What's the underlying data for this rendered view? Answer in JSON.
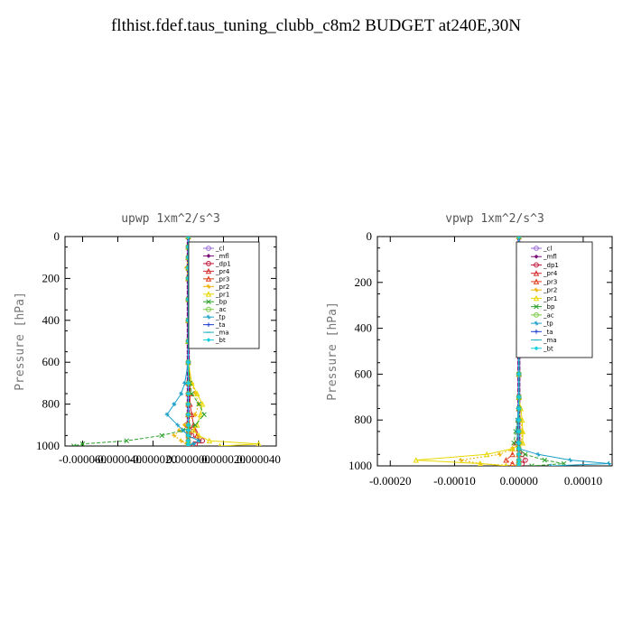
{
  "title": "flthist.fdef.taus_tuning_clubb_c8m2  BUDGET at240E,30N",
  "chart_data": [
    {
      "type": "line",
      "title": "upwp   1xm^2/s^3",
      "xlabel": "",
      "ylabel": "Pressure [hPa]",
      "xlim": [
        -7e-05,
        5e-05
      ],
      "ylim": [
        1000,
        0
      ],
      "xticks": [
        -6e-05,
        -4e-05,
        -2e-05,
        0.0,
        2e-05,
        4e-05
      ],
      "xtick_labels": [
        "-0.000060",
        "-0.000040",
        "-0.000020",
        "0.000000",
        "0.000020",
        "0.000040"
      ],
      "yticks": [
        0,
        200,
        400,
        600,
        800,
        1000
      ],
      "ytick_labels": [
        "0",
        "200",
        "400",
        "600",
        "800",
        "1000"
      ],
      "pressure": [
        0,
        50,
        100,
        150,
        200,
        300,
        400,
        500,
        600,
        700,
        750,
        800,
        850,
        900,
        925,
        950,
        975,
        990,
        1000
      ],
      "legend_position": "top-right",
      "series": [
        {
          "name": "_cl",
          "color": "#9a6bd6",
          "values": [
            0,
            0,
            0,
            0,
            0,
            0,
            0,
            0,
            0,
            0,
            0,
            0,
            0,
            0,
            0,
            0,
            0,
            0,
            0
          ]
        },
        {
          "name": "_mfl",
          "color": "#7a0f7a",
          "values": [
            0,
            0,
            0,
            0,
            0,
            0,
            0,
            0,
            0,
            0,
            0,
            0,
            0,
            0,
            0,
            0,
            0,
            0,
            0
          ]
        },
        {
          "name": "_dp1",
          "color": "#c0163b",
          "values": [
            0,
            0,
            0,
            0,
            0,
            0,
            0,
            0,
            0,
            0,
            0,
            0,
            0,
            -1e-06,
            1e-06,
            2e-06,
            8e-06,
            4e-06,
            0
          ]
        },
        {
          "name": "_pr4",
          "color": "#d42a2a",
          "values": [
            0,
            0,
            0,
            0,
            0,
            0,
            0,
            0,
            0,
            1e-06,
            1e-06,
            1e-06,
            2e-06,
            3e-06,
            4e-06,
            5e-06,
            6e-06,
            3e-06,
            1e-06
          ]
        },
        {
          "name": "_pr3",
          "color": "#e03c1a",
          "values": [
            0,
            0,
            0,
            0,
            0,
            0,
            0,
            0,
            0,
            0,
            0,
            0,
            0,
            0,
            0,
            0,
            0,
            0,
            0
          ]
        },
        {
          "name": "_pr2",
          "color": "#f0b000",
          "values": [
            0,
            0,
            0,
            -1e-06,
            0,
            0,
            0,
            0,
            0,
            2e-06,
            4e-06,
            6e-06,
            4e-06,
            -2e-06,
            -5e-06,
            -8e-06,
            -4e-06,
            -1e-06,
            0
          ]
        },
        {
          "name": "_pr1",
          "color": "#e8d800",
          "values": [
            0,
            0,
            0,
            0,
            0,
            0,
            0,
            0,
            0,
            2e-06,
            5e-06,
            8e-06,
            7e-06,
            5e-06,
            3e-06,
            6e-06,
            1.2e-05,
            4e-05,
            1.8e-05
          ]
        },
        {
          "name": "_bp",
          "color": "#2aa02a",
          "values": [
            0,
            0,
            0,
            0,
            0,
            0,
            0,
            0,
            0,
            1e-06,
            2e-06,
            6e-06,
            9e-06,
            4e-06,
            -3e-06,
            -1.5e-05,
            -3.5e-05,
            -6e-05,
            -6.5e-05
          ]
        },
        {
          "name": "_ac",
          "color": "#7ac943",
          "values": [
            0,
            0,
            0,
            0,
            0,
            0,
            0,
            0,
            0,
            0,
            0,
            0,
            0,
            0,
            0,
            0,
            0,
            0,
            0
          ]
        },
        {
          "name": "_tp",
          "color": "#1aa0c8",
          "values": [
            0,
            0,
            0,
            0,
            0,
            0,
            0,
            0,
            0,
            -2e-06,
            -4e-06,
            -8e-06,
            -1.2e-05,
            -6e-06,
            -3e-06,
            0,
            6e-06,
            3e-06,
            0
          ]
        },
        {
          "name": "_ta",
          "color": "#1e3fd0",
          "values": [
            0,
            1e-06,
            2e-06,
            1e-06,
            0,
            0,
            0,
            0,
            0,
            0,
            0,
            0,
            0,
            0,
            0,
            0,
            0,
            0,
            0
          ]
        },
        {
          "name": "_ma",
          "color": "#1fb0c0",
          "values": [
            0,
            0,
            0,
            0,
            0,
            0,
            0,
            0,
            0,
            0,
            0,
            0,
            0,
            0,
            0,
            0,
            0,
            0,
            0
          ]
        },
        {
          "name": "_bt",
          "color": "#18d0e0",
          "values": [
            0,
            0,
            0,
            0,
            0,
            0,
            0,
            0,
            0,
            0,
            0,
            0,
            0,
            0,
            0,
            0,
            0,
            0,
            0
          ]
        }
      ]
    },
    {
      "type": "line",
      "title": "vpwp   1xm^2/s^3",
      "xlabel": "",
      "ylabel": "Pressure [hPa]",
      "xlim": [
        -0.00022,
        0.000145
      ],
      "ylim": [
        1000,
        0
      ],
      "xticks": [
        -0.0002,
        -0.0001,
        0.0,
        0.0001
      ],
      "xtick_labels": [
        "-0.00020",
        "-0.00010",
        "0.00000",
        "0.00010"
      ],
      "yticks": [
        0,
        200,
        400,
        600,
        800,
        1000
      ],
      "ytick_labels": [
        "0",
        "200",
        "400",
        "600",
        "800",
        "1000"
      ],
      "pressure": [
        0,
        50,
        100,
        150,
        200,
        300,
        400,
        500,
        600,
        700,
        750,
        800,
        850,
        900,
        925,
        950,
        975,
        990,
        1000
      ],
      "legend_position": "top-right",
      "series": [
        {
          "name": "_cl",
          "color": "#9a6bd6",
          "values": [
            0,
            0,
            0,
            0,
            0,
            0,
            0,
            0,
            0,
            0,
            0,
            0,
            0,
            0,
            0,
            0,
            0,
            0,
            0
          ]
        },
        {
          "name": "_mfl",
          "color": "#7a0f7a",
          "values": [
            0,
            0,
            0,
            0,
            0,
            0,
            0,
            0,
            0,
            0,
            0,
            0,
            0,
            0,
            0,
            0,
            0,
            0,
            0
          ]
        },
        {
          "name": "_dp1",
          "color": "#c0163b",
          "values": [
            0,
            0,
            0,
            0,
            0,
            0,
            0,
            0,
            0,
            0,
            0,
            0,
            0,
            0,
            0,
            5e-06,
            1e-05,
            5e-06,
            0
          ]
        },
        {
          "name": "_pr4",
          "color": "#d42a2a",
          "values": [
            0,
            0,
            0,
            0,
            0,
            0,
            0,
            0,
            0,
            0,
            0,
            0,
            0,
            0,
            0,
            0,
            0,
            0,
            0
          ]
        },
        {
          "name": "_pr3",
          "color": "#e03c1a",
          "values": [
            0,
            0,
            0,
            0,
            0,
            0,
            0,
            0,
            0,
            0,
            0,
            0,
            0,
            -5e-06,
            -1e-05,
            -1e-05,
            -2e-05,
            -1e-05,
            0
          ]
        },
        {
          "name": "_pr2",
          "color": "#f0b000",
          "values": [
            0,
            0,
            0,
            0,
            0,
            0,
            0,
            0,
            0,
            0,
            0,
            3e-06,
            5e-06,
            4e-06,
            -1e-05,
            -3e-05,
            -9e-05,
            -6e-05,
            0
          ]
        },
        {
          "name": "_pr1",
          "color": "#e8d800",
          "values": [
            0,
            0,
            0,
            0,
            0,
            0,
            0,
            0,
            0,
            0,
            3e-06,
            5e-06,
            6e-06,
            6e-06,
            -1e-05,
            -5e-05,
            -0.00016,
            -6e-05,
            -2e-05
          ]
        },
        {
          "name": "_bp",
          "color": "#2aa02a",
          "values": [
            0,
            0,
            0,
            0,
            0,
            0,
            0,
            0,
            0,
            0,
            0,
            -2e-06,
            -5e-06,
            -8e-06,
            0,
            1e-05,
            4e-05,
            7e-05,
            2e-05
          ]
        },
        {
          "name": "_ac",
          "color": "#7ac943",
          "values": [
            0,
            0,
            0,
            0,
            0,
            0,
            0,
            0,
            0,
            0,
            0,
            0,
            0,
            0,
            0,
            0,
            0,
            0,
            0
          ]
        },
        {
          "name": "_tp",
          "color": "#1aa0c8",
          "values": [
            0,
            0,
            0,
            0,
            0,
            0,
            0,
            0,
            0,
            0,
            -1e-06,
            -2e-06,
            -3e-06,
            -2e-06,
            0,
            3e-05,
            8e-05,
            0.00014,
            5e-05
          ]
        },
        {
          "name": "_ta",
          "color": "#1e3fd0",
          "values": [
            0,
            0,
            0,
            0,
            0,
            0,
            0,
            0,
            0,
            0,
            0,
            0,
            0,
            0,
            0,
            0,
            0,
            0,
            0
          ]
        },
        {
          "name": "_ma",
          "color": "#1fb0c0",
          "values": [
            0,
            0,
            0,
            0,
            0,
            0,
            0,
            0,
            0,
            0,
            0,
            0,
            0,
            0,
            0,
            0,
            0,
            0,
            0
          ]
        },
        {
          "name": "_bt",
          "color": "#18d0e0",
          "values": [
            0,
            0,
            0,
            0,
            0,
            0,
            0,
            0,
            0,
            0,
            0,
            0,
            0,
            0,
            0,
            0,
            0,
            0,
            0
          ]
        }
      ]
    }
  ]
}
